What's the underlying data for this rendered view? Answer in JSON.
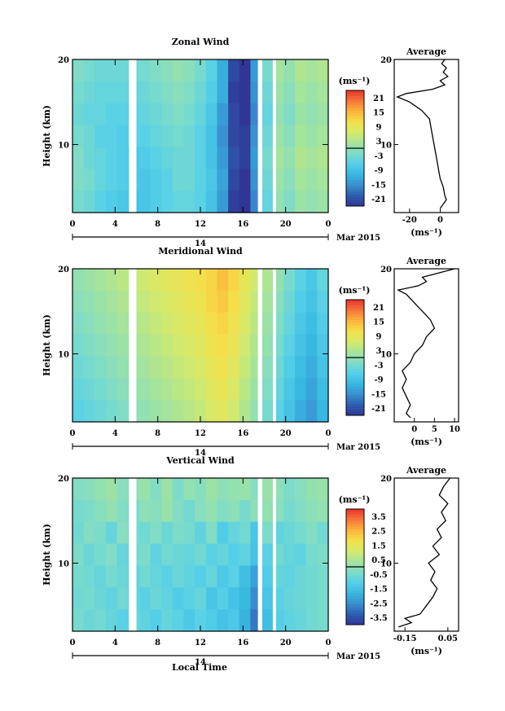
{
  "figure": {
    "x_axis_label": "Local Time",
    "date_label": "Mar 2015",
    "day_label": "14"
  },
  "chart_data": [
    {
      "type": "heatmap",
      "title": "Zonal Wind",
      "ylabel": "Height (km)",
      "xlabel": "",
      "x_ticks": [
        "0",
        "4",
        "8",
        "12",
        "16",
        "20",
        "0"
      ],
      "xlim": [
        0,
        24
      ],
      "y_ticks": [
        "20",
        "10"
      ],
      "ylim": [
        2,
        20
      ],
      "colorbar": {
        "unit": "(ms⁻¹)",
        "ticks": [
          "21",
          "15",
          "9",
          "3",
          "-3",
          "-9",
          "-15",
          "-21"
        ],
        "range": [
          -24,
          24
        ]
      },
      "profile": {
        "title": "Average",
        "unit": "(ms⁻¹)",
        "x_ticks": [
          "-20",
          "0"
        ],
        "xlim": [
          -30,
          12
        ],
        "y_ticks": [
          "20",
          "10"
        ],
        "points": [
          [
            0,
            2.5
          ],
          [
            2,
            3
          ],
          [
            4,
            3.5
          ],
          [
            3,
            4
          ],
          [
            2,
            5
          ],
          [
            0,
            6
          ],
          [
            -1,
            7
          ],
          [
            -2,
            8
          ],
          [
            -3,
            9
          ],
          [
            -4,
            10
          ],
          [
            -5,
            11
          ],
          [
            -6,
            12
          ],
          [
            -7,
            13
          ],
          [
            -12,
            14
          ],
          [
            -20,
            15
          ],
          [
            -28,
            15.6
          ],
          [
            -22,
            16
          ],
          [
            -5,
            16.5
          ],
          [
            3,
            17
          ],
          [
            0,
            17.5
          ],
          [
            5,
            18
          ],
          [
            2,
            18.5
          ],
          [
            4,
            19
          ],
          [
            1,
            19.5
          ],
          [
            3,
            20
          ]
        ]
      },
      "gaps": [
        [
          5.3,
          6.0
        ],
        [
          17.4,
          17.8
        ],
        [
          18.8,
          19.1
        ]
      ],
      "values": [
        [
          -2,
          -3,
          -4,
          -4,
          -4,
          -4,
          -3,
          -2,
          -1,
          0,
          -1,
          -3,
          -6,
          -12,
          -22,
          -24,
          -14,
          -3,
          2,
          0,
          3,
          2,
          3
        ],
        [
          -3,
          -4,
          -5,
          -5,
          -5,
          -5,
          -4,
          -3,
          -2,
          -1,
          -2,
          -4,
          -7,
          -12,
          -23,
          -24,
          -15,
          -4,
          1,
          -1,
          2,
          1,
          2
        ],
        [
          -4,
          -5,
          -5,
          -6,
          -6,
          -6,
          -5,
          -4,
          -3,
          -2,
          -3,
          -5,
          -8,
          -14,
          -22,
          -24,
          -16,
          -5,
          0,
          -2,
          1,
          0,
          1
        ],
        [
          -3,
          -4,
          -6,
          -6,
          -7,
          -6,
          -6,
          -5,
          -4,
          -3,
          -4,
          -6,
          -9,
          -15,
          -22,
          -23,
          -15,
          -4,
          1,
          -1,
          2,
          1,
          2
        ],
        [
          -2,
          -4,
          -5,
          -6,
          -7,
          -8,
          -7,
          -6,
          -5,
          -4,
          -4,
          -6,
          -9,
          -14,
          -21,
          -23,
          -14,
          -3,
          2,
          0,
          3,
          2,
          3
        ],
        [
          -2,
          -3,
          -5,
          -6,
          -7,
          -8,
          -8,
          -7,
          -6,
          -4,
          -4,
          -6,
          -8,
          -13,
          -22,
          -24,
          -15,
          -4,
          1,
          -1,
          2,
          1,
          2
        ],
        [
          -3,
          -4,
          -6,
          -7,
          -8,
          -9,
          -8,
          -7,
          -6,
          -5,
          -5,
          -6,
          -9,
          -14,
          -23,
          -24,
          -16,
          -5,
          0,
          -2,
          1,
          0,
          1
        ]
      ]
    },
    {
      "type": "heatmap",
      "title": "Meridional Wind",
      "ylabel": "Height (km)",
      "xlabel": "",
      "x_ticks": [
        "0",
        "4",
        "8",
        "12",
        "16",
        "20",
        "0"
      ],
      "xlim": [
        0,
        24
      ],
      "y_ticks": [
        "20",
        "10"
      ],
      "ylim": [
        2,
        20
      ],
      "colorbar": {
        "unit": "(ms⁻¹)",
        "ticks": [
          "21",
          "15",
          "9",
          "3",
          "-3",
          "-9",
          "-15",
          "-21"
        ],
        "range": [
          -24,
          24
        ]
      },
      "profile": {
        "title": "Average",
        "unit": "(ms⁻¹)",
        "x_ticks": [
          "0",
          "5",
          "10"
        ],
        "xlim": [
          -5,
          11
        ],
        "y_ticks": [
          "20",
          "10"
        ],
        "points": [
          [
            -1,
            2.5
          ],
          [
            -2,
            3
          ],
          [
            -1,
            4
          ],
          [
            -2,
            5
          ],
          [
            -3,
            6
          ],
          [
            -2,
            7
          ],
          [
            -3,
            8
          ],
          [
            -1,
            9
          ],
          [
            0,
            10
          ],
          [
            2,
            11
          ],
          [
            3,
            12
          ],
          [
            5,
            13
          ],
          [
            4,
            14
          ],
          [
            2,
            15
          ],
          [
            0,
            16
          ],
          [
            -2,
            17
          ],
          [
            -4,
            17.5
          ],
          [
            1,
            18
          ],
          [
            3,
            18.5
          ],
          [
            2,
            19
          ],
          [
            6,
            19.5
          ],
          [
            10,
            20
          ]
        ]
      },
      "gaps": [
        [
          5.3,
          6.0
        ],
        [
          17.4,
          17.8
        ],
        [
          18.8,
          19.1
        ]
      ],
      "values": [
        [
          0,
          1,
          2,
          3,
          4,
          5,
          6,
          7,
          8,
          9,
          10,
          11,
          12,
          14,
          12,
          9,
          6,
          3,
          0,
          -3,
          -6,
          -8,
          -5
        ],
        [
          -1,
          0,
          1,
          2,
          3,
          4,
          5,
          6,
          7,
          8,
          9,
          10,
          12,
          13,
          11,
          8,
          5,
          2,
          -1,
          -4,
          -7,
          -9,
          -6
        ],
        [
          -2,
          -1,
          0,
          1,
          2,
          3,
          4,
          5,
          6,
          7,
          8,
          9,
          11,
          12,
          10,
          7,
          4,
          1,
          -2,
          -5,
          -8,
          -10,
          -7
        ],
        [
          -3,
          -2,
          -1,
          0,
          1,
          2,
          3,
          4,
          5,
          6,
          7,
          8,
          10,
          11,
          9,
          6,
          3,
          0,
          -3,
          -6,
          -9,
          -11,
          -8
        ],
        [
          -4,
          -3,
          -2,
          -1,
          0,
          1,
          2,
          3,
          4,
          5,
          6,
          7,
          9,
          10,
          8,
          5,
          2,
          -1,
          -4,
          -7,
          -10,
          -12,
          -9
        ],
        [
          -5,
          -4,
          -3,
          -2,
          -1,
          0,
          1,
          2,
          3,
          4,
          5,
          6,
          8,
          9,
          7,
          4,
          1,
          -2,
          -5,
          -8,
          -11,
          -13,
          -10
        ],
        [
          -6,
          -5,
          -4,
          -3,
          -2,
          -1,
          0,
          1,
          2,
          3,
          4,
          5,
          7,
          8,
          6,
          3,
          0,
          -3,
          -6,
          -9,
          -12,
          -14,
          -11
        ]
      ]
    },
    {
      "type": "heatmap",
      "title": "Vertical Wind",
      "ylabel": "Height (km)",
      "xlabel": "Local Time",
      "x_ticks": [
        "0",
        "4",
        "8",
        "12",
        "16",
        "20",
        "0"
      ],
      "xlim": [
        0,
        24
      ],
      "y_ticks": [
        "20",
        "10"
      ],
      "ylim": [
        2,
        20
      ],
      "colorbar": {
        "unit": "(ms⁻¹)",
        "ticks": [
          "3.5",
          "2.5",
          "1.5",
          "0.5",
          "-0.5",
          "-1.5",
          "-2.5",
          "-3.5"
        ],
        "range": [
          -4,
          4
        ]
      },
      "profile": {
        "title": "Average",
        "unit": "(ms⁻¹)",
        "x_ticks": [
          "-0.15",
          "0.05"
        ],
        "xlim": [
          -0.2,
          0.1
        ],
        "y_ticks": [
          "20",
          "10"
        ],
        "points": [
          [
            -0.18,
            2.5
          ],
          [
            -0.12,
            3
          ],
          [
            -0.15,
            3.5
          ],
          [
            -0.08,
            4
          ],
          [
            -0.05,
            5
          ],
          [
            -0.02,
            6
          ],
          [
            0.0,
            7
          ],
          [
            -0.03,
            8
          ],
          [
            -0.01,
            9
          ],
          [
            -0.04,
            10
          ],
          [
            0.01,
            11
          ],
          [
            -0.02,
            12
          ],
          [
            0.02,
            13
          ],
          [
            0.0,
            14
          ],
          [
            0.04,
            15
          ],
          [
            0.02,
            16
          ],
          [
            0.05,
            17
          ],
          [
            0.01,
            18
          ],
          [
            0.03,
            19
          ],
          [
            0.06,
            20
          ]
        ]
      },
      "gaps": [
        [
          5.3,
          6.0
        ],
        [
          17.4,
          17.8
        ],
        [
          18.8,
          19.1
        ]
      ],
      "values": [
        [
          -0.3,
          -0.2,
          0.0,
          0.2,
          -0.2,
          -0.1,
          0.1,
          -0.3,
          0.2,
          -0.4,
          0.0,
          -0.2,
          0.2,
          -0.1,
          0.0,
          0.1,
          -0.2,
          0.1,
          -0.1,
          -0.4,
          -0.2,
          0.0,
          0.1
        ],
        [
          -0.5,
          -0.4,
          -0.2,
          0.0,
          -0.3,
          -0.5,
          -0.1,
          -0.2,
          0.1,
          -0.3,
          -0.6,
          -0.2,
          0.0,
          -0.3,
          -0.1,
          -0.5,
          -0.1,
          0.0,
          -0.2,
          -0.5,
          -0.3,
          -0.1,
          0.0
        ],
        [
          -0.6,
          -0.3,
          -0.4,
          -0.8,
          -0.2,
          -0.5,
          -0.6,
          -0.3,
          -0.7,
          -0.4,
          -0.5,
          -0.9,
          -0.3,
          -1.2,
          -0.8,
          -0.6,
          -1.4,
          -0.4,
          -0.9,
          -0.7,
          -0.5,
          -0.3,
          -0.6
        ],
        [
          -0.4,
          -0.7,
          -0.5,
          -0.3,
          -0.8,
          -0.6,
          -0.4,
          -0.9,
          -0.6,
          -0.7,
          -0.8,
          -0.6,
          -1.0,
          -0.8,
          -1.1,
          -0.9,
          -1.5,
          -1.0,
          -0.6,
          -0.8,
          -0.9,
          -0.5,
          -0.4
        ],
        [
          -0.5,
          -0.6,
          -0.8,
          -0.5,
          -0.7,
          -0.9,
          -0.6,
          -0.8,
          -1.0,
          -0.7,
          -0.9,
          -1.1,
          -0.8,
          -1.3,
          -1.0,
          -1.6,
          -2.2,
          -1.2,
          -0.8,
          -0.9,
          -0.7,
          -0.6,
          -0.5
        ],
        [
          -0.6,
          -0.5,
          -0.7,
          -0.9,
          -0.6,
          -0.8,
          -1.0,
          -0.7,
          -0.9,
          -1.2,
          -1.0,
          -0.8,
          -1.4,
          -1.1,
          -1.5,
          -1.8,
          -2.6,
          -1.4,
          -1.0,
          -0.8,
          -0.7,
          -0.6,
          -0.5
        ],
        [
          -0.5,
          -0.7,
          -0.6,
          -0.8,
          -1.0,
          -0.7,
          -0.9,
          -1.1,
          -0.8,
          -1.0,
          -1.3,
          -1.0,
          -1.2,
          -1.5,
          -1.3,
          -1.9,
          -2.9,
          -1.6,
          -1.1,
          -0.9,
          -0.8,
          -0.6,
          -0.5
        ]
      ]
    }
  ]
}
